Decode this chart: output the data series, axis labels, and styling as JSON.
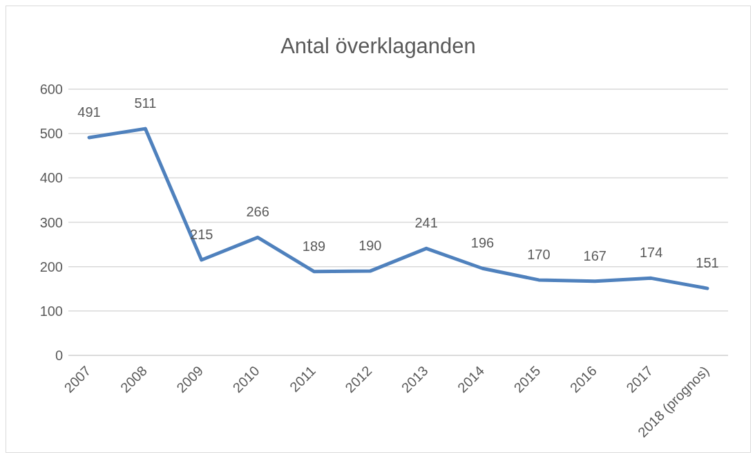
{
  "chart_data": {
    "type": "line",
    "title": "Antal överklaganden",
    "categories": [
      "2007",
      "2008",
      "2009",
      "2010",
      "2011",
      "2012",
      "2013",
      "2014",
      "2015",
      "2016",
      "2017",
      "2018 (prognos)"
    ],
    "series": [
      {
        "color": "#4f81bd",
        "values": [
          491,
          511,
          215,
          266,
          189,
          190,
          241,
          196,
          170,
          167,
          174,
          151
        ]
      }
    ],
    "ylim": [
      0,
      600
    ],
    "yticks": [
      0,
      100,
      200,
      300,
      400,
      500,
      600
    ],
    "grid": "y",
    "marker": "none",
    "line_style": "solid",
    "data_labels": true
  }
}
